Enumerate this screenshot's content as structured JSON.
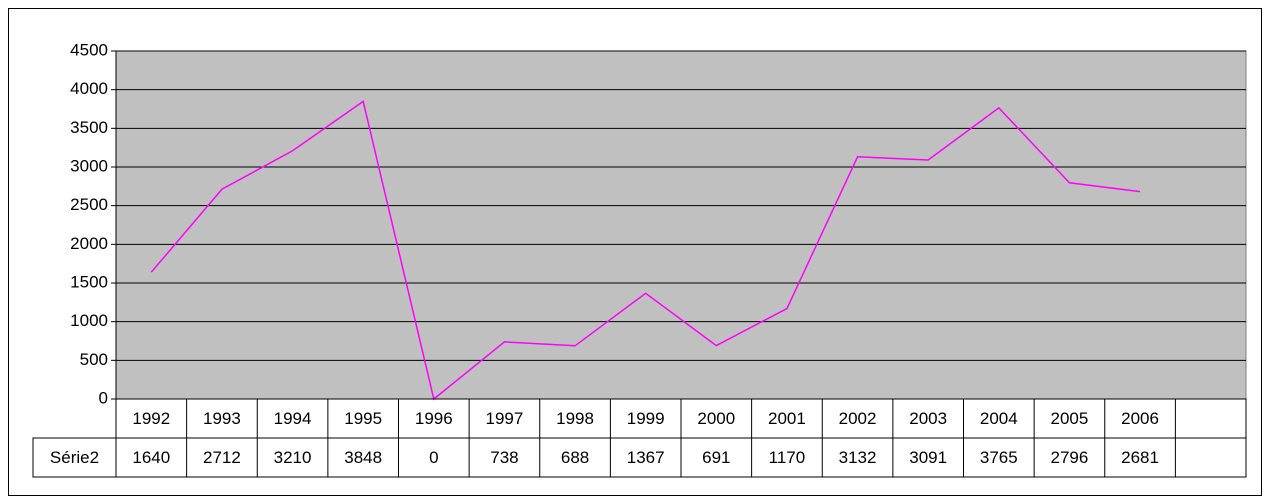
{
  "chart_data": {
    "type": "line",
    "categories": [
      "1992",
      "1993",
      "1994",
      "1995",
      "1996",
      "1997",
      "1998",
      "1999",
      "2000",
      "2001",
      "2002",
      "2003",
      "2004",
      "2005",
      "2006",
      null
    ],
    "series": [
      {
        "name": "Série2",
        "color": "#ff00ff",
        "values": [
          1640,
          2712,
          3210,
          3848,
          0,
          738,
          688,
          1367,
          691,
          1170,
          3132,
          3091,
          3765,
          2796,
          2681,
          null
        ]
      }
    ],
    "ylim": [
      0,
      4500
    ],
    "yticks": [
      0,
      500,
      1000,
      1500,
      2000,
      2500,
      3000,
      3500,
      4000,
      4500
    ],
    "grid": true,
    "plot_background": "#c0c0c0",
    "data_table": true
  }
}
